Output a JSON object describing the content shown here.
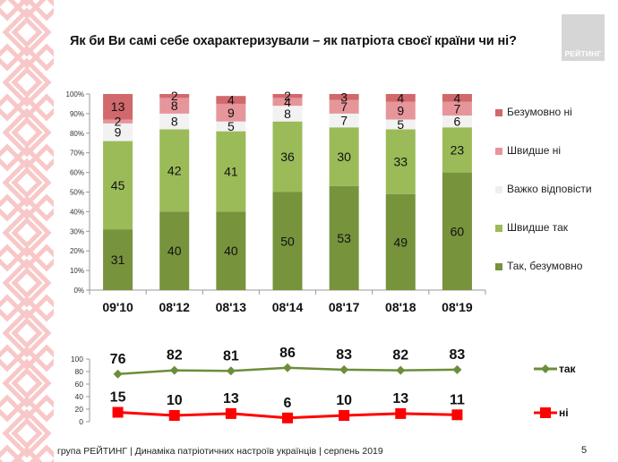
{
  "title": "Як  би Ви самі себе охарактеризували – як патріота своєї країни чи ні?",
  "logo_text": "РЕЙТИНГ",
  "footer": "група РЕЙТИНГ | Динаміка патріотичних настроїв українців | серпень  2019",
  "page_number": "5",
  "colors": {
    "tak_bezumovno": "#77933c",
    "shvydshe_tak": "#9bbb59",
    "vazhko": "#f2f2f2",
    "shvydshe_ni": "#e6969a",
    "bezumovno_ni": "#d0686c",
    "line_tak": "#6b8e3a",
    "line_ni": "#ff0000",
    "ornament": "#f8c8c8",
    "logo_bg": "#d6d6d6"
  },
  "chart_data": [
    {
      "type": "bar",
      "stacked": true,
      "title": "",
      "xlabel": "",
      "ylabel": "",
      "ylim": [
        0,
        100
      ],
      "yticks": [
        "0%",
        "10%",
        "20%",
        "30%",
        "40%",
        "50%",
        "60%",
        "70%",
        "80%",
        "90%",
        "100%"
      ],
      "categories": [
        "09'10",
        "08'12",
        "08'13",
        "08'14",
        "08'17",
        "08'18",
        "08'19"
      ],
      "series": [
        {
          "name": "Так, безумовно",
          "key": "tak_bezumovno",
          "values": [
            31,
            40,
            40,
            50,
            53,
            49,
            60
          ]
        },
        {
          "name": "Швидше так",
          "key": "shvydshe_tak",
          "values": [
            45,
            42,
            41,
            36,
            30,
            33,
            23
          ]
        },
        {
          "name": "Важко відповісти",
          "key": "vazhko",
          "values": [
            9,
            8,
            5,
            8,
            7,
            5,
            6
          ]
        },
        {
          "name": "Швидше ні",
          "key": "shvydshe_ni",
          "values": [
            2,
            8,
            9,
            4,
            7,
            9,
            7
          ]
        },
        {
          "name": "Безумовно ні",
          "key": "bezumovno_ni",
          "values": [
            13,
            2,
            4,
            2,
            3,
            4,
            4
          ]
        }
      ],
      "legend": [
        "Безумовно ні",
        "Швидше ні",
        "Важко відповісти",
        "Швидше так",
        "Так, безумовно"
      ],
      "legend_position": "right"
    },
    {
      "type": "line",
      "title": "",
      "ylim": [
        0,
        100
      ],
      "yticks": [
        "0",
        "20",
        "40",
        "60",
        "80",
        "100"
      ],
      "categories": [
        "09'10",
        "08'12",
        "08'13",
        "08'14",
        "08'17",
        "08'18",
        "08'19"
      ],
      "series": [
        {
          "name": "так",
          "key": "line_tak",
          "marker": "diamond",
          "values": [
            76,
            82,
            81,
            86,
            83,
            82,
            83
          ]
        },
        {
          "name": "ні",
          "key": "line_ni",
          "marker": "square",
          "values": [
            15,
            10,
            13,
            6,
            10,
            13,
            11
          ]
        }
      ],
      "legend_position": "right"
    }
  ]
}
